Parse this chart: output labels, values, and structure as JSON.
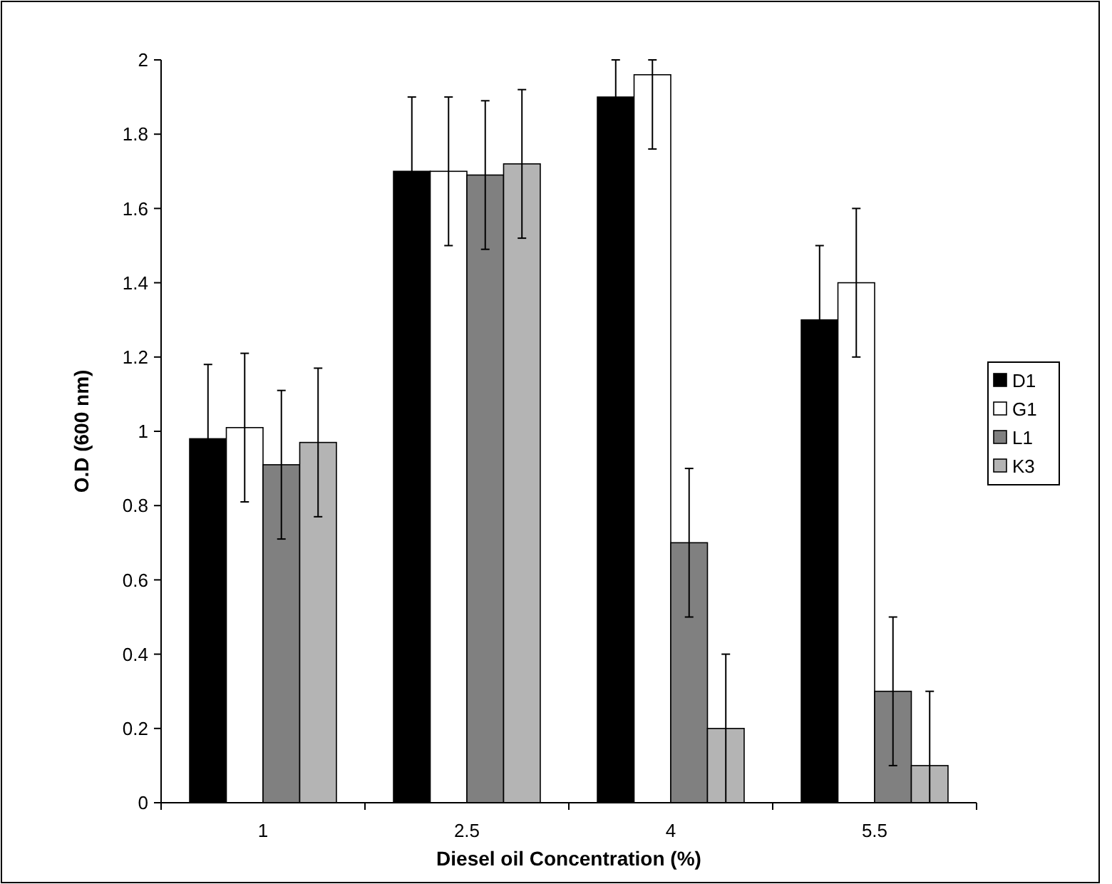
{
  "chart_data": {
    "type": "bar",
    "xlabel": "Diesel oil Concentration (%)",
    "ylabel": "O.D (600 nm)",
    "categories": [
      "1",
      "2.5",
      "4",
      "5.5"
    ],
    "series": [
      {
        "name": "D1",
        "color": "#000000",
        "values": [
          0.98,
          1.7,
          1.9,
          1.3
        ],
        "errors": [
          0.2,
          0.2,
          [
            1.9,
            2
          ],
          0.2
        ]
      },
      {
        "name": "G1",
        "color": "#ffffff",
        "values": [
          1.01,
          1.7,
          1.96,
          1.4
        ],
        "errors": [
          0.2,
          0.2,
          [
            1.76,
            2
          ],
          0.2
        ]
      },
      {
        "name": "L1",
        "color": "#808080",
        "values": [
          0.91,
          1.69,
          0.7,
          0.3
        ],
        "errors": [
          0.2,
          0.2,
          0.2,
          0.2
        ]
      },
      {
        "name": "K3",
        "color": "#b4b4b4",
        "values": [
          0.97,
          1.72,
          0.2,
          0.1
        ],
        "errors": [
          0.2,
          0.2,
          0.2,
          [
            0,
            0.3
          ]
        ]
      }
    ],
    "ylim": [
      0,
      2
    ],
    "yticks": [
      0,
      0.2,
      0.4,
      0.6,
      0.8,
      1,
      1.2,
      1.4,
      1.6,
      1.8,
      2
    ],
    "grid": false,
    "legend": "right"
  }
}
